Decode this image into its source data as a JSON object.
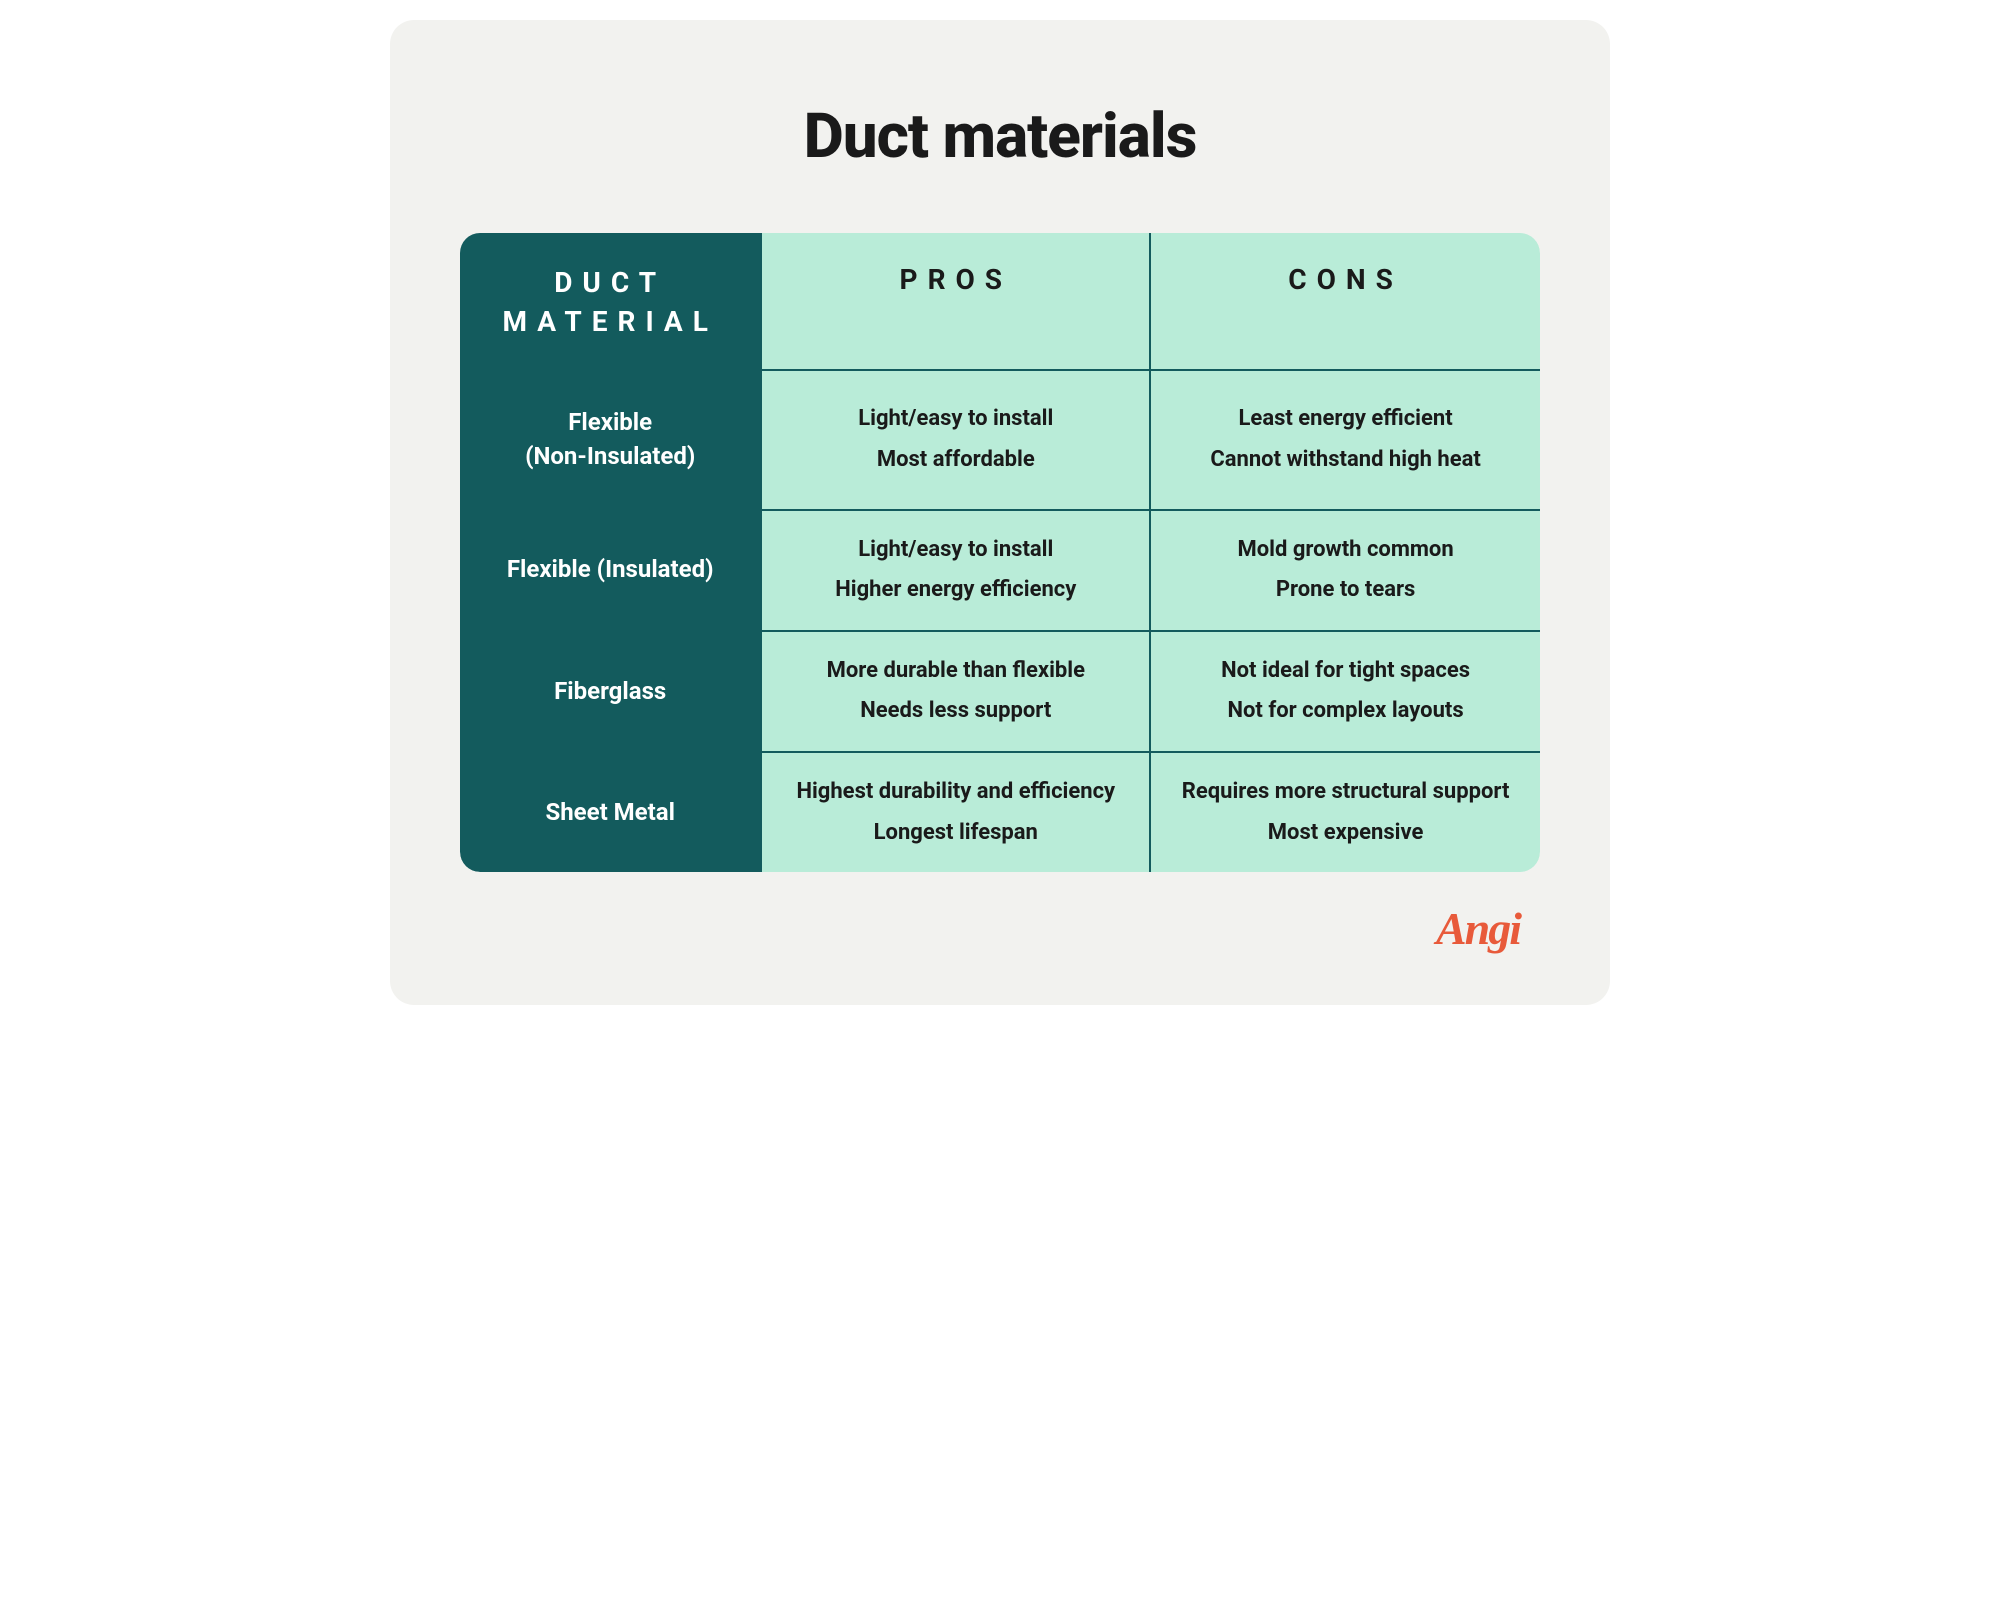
{
  "title": "Duct materials",
  "table": {
    "columns": [
      "DUCT MATERIAL",
      "PROS",
      "CONS"
    ],
    "header_bg_material": "#135b5d",
    "header_bg_other": "#b9ecd8",
    "header_text_material": "#ffffff",
    "header_text_other": "#1a1a1a",
    "cell_bg_material": "#135b5d",
    "cell_bg_other": "#b9ecd8",
    "border_color": "#135b5d",
    "rows": [
      {
        "material": "Flexible (Non-Insulated)",
        "pros": [
          "Light/easy to install",
          "Most affordable"
        ],
        "cons": [
          "Least energy efficient",
          "Cannot withstand high heat"
        ]
      },
      {
        "material": "Flexible (Insulated)",
        "pros": [
          "Light/easy to install",
          "Higher energy efficiency"
        ],
        "cons": [
          "Mold growth common",
          "Prone to tears"
        ]
      },
      {
        "material": "Fiberglass",
        "pros": [
          "More durable than flexible",
          "Needs less support"
        ],
        "cons": [
          "Not ideal for tight spaces",
          "Not for complex layouts"
        ]
      },
      {
        "material": "Sheet Metal",
        "pros": [
          "Highest durability and efficiency",
          "Longest lifespan"
        ],
        "cons": [
          "Requires more structural support",
          "Most expensive"
        ]
      }
    ]
  },
  "logo": {
    "text": "Angi",
    "color": "#e85a3a"
  },
  "background_color": "#f2f2ef",
  "title_color": "#1a1a1a",
  "title_fontsize": 62
}
